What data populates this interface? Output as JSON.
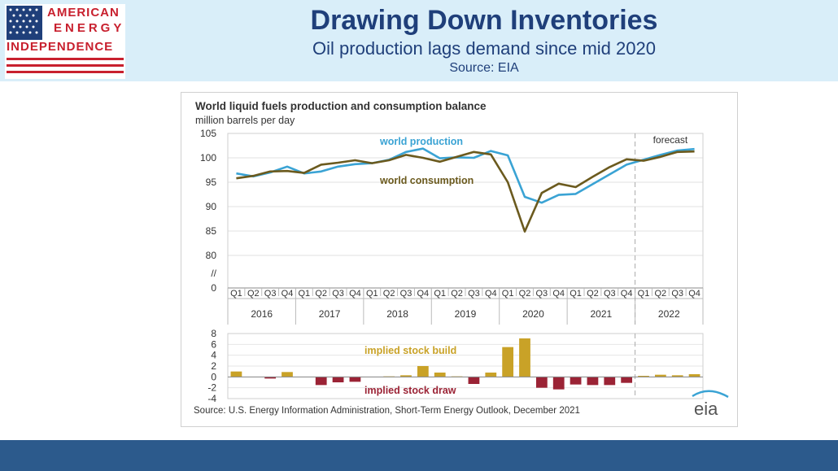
{
  "header": {
    "logo": {
      "line1": "AMERICAN",
      "line2": "ENERGY",
      "line3": "INDEPENDENCE"
    },
    "title": "Drawing Down Inventories",
    "subtitle": "Oil production lags demand since mid 2020",
    "source": "Source: EIA"
  },
  "colors": {
    "header_bg": "#d9eef9",
    "title": "#1f3f7a",
    "production": "#3aa3d4",
    "consumption": "#6b5a1e",
    "build": "#c9a227",
    "draw": "#9b2335",
    "footer": "#2c5a8c"
  },
  "chart_data": [
    {
      "type": "line",
      "title": "World liquid fuels production and consumption balance",
      "ylabel": "million barrels per day",
      "ylim": [
        80,
        105
      ],
      "yticks": [
        "105",
        "100",
        "95",
        "90",
        "85",
        "80",
        "//",
        "0"
      ],
      "quarters": [
        "Q1",
        "Q2",
        "Q3",
        "Q4",
        "Q1",
        "Q2",
        "Q3",
        "Q4",
        "Q1",
        "Q2",
        "Q3",
        "Q4",
        "Q1",
        "Q2",
        "Q3",
        "Q4",
        "Q1",
        "Q2",
        "Q3",
        "Q4",
        "Q1",
        "Q2",
        "Q3",
        "Q4",
        "Q1",
        "Q2",
        "Q3",
        "Q4"
      ],
      "years": [
        "2016",
        "2017",
        "2018",
        "2019",
        "2020",
        "2021",
        "2022"
      ],
      "forecast_label": "forecast",
      "forecast_start_index": 23.5,
      "series": [
        {
          "name": "world production",
          "values": [
            96.8,
            96.2,
            97.0,
            98.2,
            96.8,
            97.2,
            98.2,
            98.7,
            98.9,
            99.6,
            101.2,
            101.9,
            99.9,
            100.1,
            100.0,
            101.4,
            100.5,
            92.0,
            90.8,
            92.4,
            92.6,
            94.6,
            96.6,
            98.6,
            99.6,
            100.6,
            101.5,
            101.8
          ]
        },
        {
          "name": "world consumption",
          "values": [
            95.8,
            96.3,
            97.2,
            97.3,
            96.9,
            98.6,
            99.0,
            99.5,
            98.9,
            99.5,
            100.6,
            100.0,
            99.2,
            100.2,
            101.2,
            100.7,
            95.0,
            84.9,
            92.8,
            94.7,
            94.0,
            96.1,
            98.1,
            99.7,
            99.4,
            100.2,
            101.2,
            101.3
          ]
        }
      ]
    },
    {
      "type": "bar",
      "ylim": [
        -4,
        8
      ],
      "yticks": [
        "8",
        "6",
        "4",
        "2",
        "0",
        "-2",
        "-4"
      ],
      "categories": [
        "Q1",
        "Q2",
        "Q3",
        "Q4",
        "Q1",
        "Q2",
        "Q3",
        "Q4",
        "Q1",
        "Q2",
        "Q3",
        "Q4",
        "Q1",
        "Q2",
        "Q3",
        "Q4",
        "Q1",
        "Q2",
        "Q3",
        "Q4",
        "Q1",
        "Q2",
        "Q3",
        "Q4",
        "Q1",
        "Q2",
        "Q3",
        "Q4"
      ],
      "values": [
        1.0,
        0.0,
        -0.3,
        0.9,
        0.0,
        -1.5,
        -1.0,
        -0.9,
        0.0,
        0.1,
        0.3,
        2.0,
        0.8,
        0.1,
        -1.3,
        0.8,
        5.5,
        7.1,
        -2.0,
        -2.3,
        -1.4,
        -1.5,
        -1.5,
        -1.1,
        0.2,
        0.4,
        0.3,
        0.5
      ],
      "labels": {
        "build": "implied stock  build",
        "draw": "implied stock draw"
      }
    }
  ],
  "chart_source": "Source: U.S. Energy Information Administration, Short-Term Energy Outlook, December 2021",
  "eia_logo": "eia"
}
